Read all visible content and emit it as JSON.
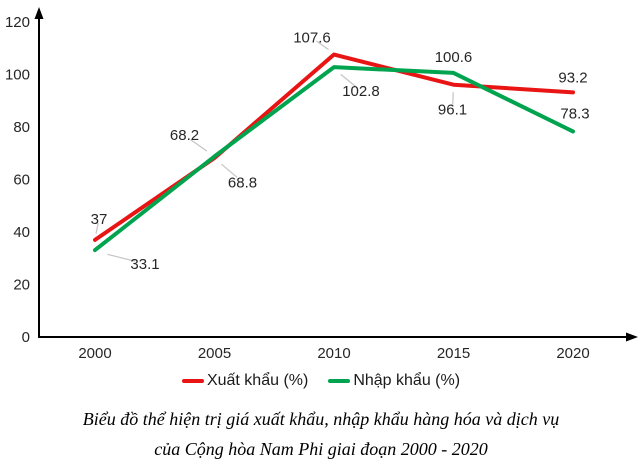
{
  "chart_data": {
    "type": "line",
    "title": "Biểu đồ thể hiện trị giá xuất khẩu, nhập khẩu hàng hóa và dịch vụ của Cộng hòa Nam Phi giai đoạn 2000 - 2020",
    "categories": [
      "2000",
      "2005",
      "2010",
      "2015",
      "2020"
    ],
    "series": [
      {
        "name": "Xuất khẩu (%)",
        "color": "#e91414",
        "values": [
          37,
          68.2,
          107.6,
          96.1,
          93.2
        ],
        "label_offsets": [
          [
            4,
            -21,
            1
          ],
          [
            -30,
            -23,
            1
          ],
          [
            -22,
            -17,
            1
          ],
          [
            -1,
            25,
            1
          ],
          [
            0,
            -15,
            0
          ]
        ]
      },
      {
        "name": "Nhập khẩu (%)",
        "color": "#00a44f",
        "values": [
          33.1,
          68.8,
          102.8,
          100.6,
          78.3
        ],
        "label_offsets": [
          [
            50,
            14,
            1
          ],
          [
            28,
            26,
            1
          ],
          [
            27,
            24,
            1
          ],
          [
            0,
            -16,
            0
          ],
          [
            2,
            -18,
            0
          ]
        ]
      }
    ],
    "ylim": [
      0,
      120
    ],
    "yticks": [
      0,
      20,
      40,
      60,
      80,
      100,
      120
    ],
    "xlabel": "",
    "ylabel": "",
    "grid": false,
    "legend_position": "bottom",
    "axis_arrows": true,
    "tick_color": "#262626",
    "leader_color": "#c4c4c4",
    "axis_color": "#000000"
  },
  "caption": {
    "line1": "Biểu đồ thể hiện trị giá xuất khẩu, nhập khẩu hàng hóa và dịch vụ",
    "line2": "của Cộng hòa Nam Phi giai đoạn 2000 - 2020"
  }
}
